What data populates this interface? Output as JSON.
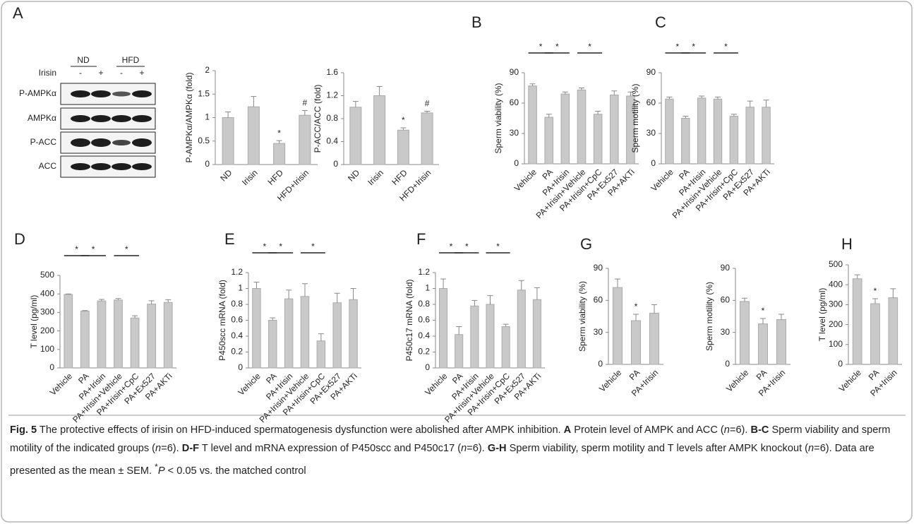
{
  "blot": {
    "panel": "A",
    "groups": [
      "ND",
      "HFD"
    ],
    "treatment": "Irisin",
    "lanes": [
      "-",
      "+",
      "-",
      "+"
    ],
    "rows": [
      "P-AMPKα",
      "AMPKα",
      "P-ACC",
      "ACC"
    ]
  },
  "chart_data": [
    {
      "type": "bar",
      "y_label": "P-AMPKα/AMPKα (fold)",
      "categories": [
        "ND",
        "Irisin",
        "HFD",
        "HFD+Irisin"
      ],
      "values": [
        1.0,
        1.23,
        0.45,
        1.05
      ],
      "errors": [
        0.12,
        0.22,
        0.06,
        0.1
      ],
      "ylim": [
        0,
        2
      ],
      "yticks": [
        0,
        0.5,
        1,
        1.5,
        2
      ],
      "annotations": [
        {
          "category": "HFD",
          "text": "*"
        },
        {
          "category": "HFD+Irisin",
          "text": "#"
        }
      ],
      "color": "#c9c9c9"
    },
    {
      "type": "bar",
      "y_label": "P-ACC/ACC (fold)",
      "categories": [
        "ND",
        "Irisin",
        "HFD",
        "HFD+Irisin"
      ],
      "values": [
        1.0,
        1.2,
        0.6,
        0.9
      ],
      "errors": [
        0.1,
        0.16,
        0.04,
        0.03
      ],
      "ylim": [
        0,
        1.6
      ],
      "yticks": [
        0,
        0.4,
        0.8,
        1.2,
        1.6
      ],
      "annotations": [
        {
          "category": "HFD",
          "text": "*"
        },
        {
          "category": "HFD+Irisin",
          "text": "#"
        }
      ],
      "color": "#c9c9c9"
    },
    {
      "type": "bar",
      "panel": "B",
      "y_label": "Sperm viability (%)",
      "categories": [
        "Vehicle",
        "PA",
        "PA+Irisin",
        "PA+Irisin+Vehicle",
        "PA+Irisin+CpC",
        "PA+Ex527",
        "PA+AKTi"
      ],
      "values": [
        77,
        46,
        69,
        73,
        49,
        68,
        67
      ],
      "errors": [
        2,
        3,
        2,
        2,
        3,
        4,
        4
      ],
      "ylim": [
        0,
        90
      ],
      "yticks": [
        0,
        30,
        60,
        90
      ],
      "significance": [
        {
          "between": [
            "Vehicle",
            "PA"
          ],
          "text": "*"
        },
        {
          "between": [
            "PA",
            "PA+Irisin"
          ],
          "text": "*"
        },
        {
          "between": [
            "PA+Irisin+Vehicle",
            "PA+Irisin+CpC"
          ],
          "text": "*"
        }
      ],
      "color": "#c9c9c9"
    },
    {
      "type": "bar",
      "panel": "C",
      "y_label": "Sperm motility (%)",
      "categories": [
        "Vehicle",
        "PA",
        "PA+Irisin",
        "PA+Irisin+Vehicle",
        "PA+Irisin+CpC",
        "PA+Ex527",
        "PA+AKTi"
      ],
      "values": [
        64,
        45,
        65,
        64,
        47,
        56,
        56
      ],
      "errors": [
        2,
        2,
        2,
        2,
        2,
        6,
        7
      ],
      "ylim": [
        0,
        90
      ],
      "yticks": [
        0,
        30,
        60,
        90
      ],
      "significance": [
        {
          "between": [
            "Vehicle",
            "PA"
          ],
          "text": "*"
        },
        {
          "between": [
            "PA",
            "PA+Irisin"
          ],
          "text": "*"
        },
        {
          "between": [
            "PA+Irisin+Vehicle",
            "PA+Irisin+CpC"
          ],
          "text": "*"
        }
      ],
      "color": "#c9c9c9"
    },
    {
      "type": "bar",
      "panel": "D",
      "y_label": "T level (pg/ml)",
      "categories": [
        "Vehicle",
        "PA",
        "PA+Irisin",
        "PA+Irisin+Vehicle",
        "PA+Irisin+CpC",
        "PA+Ex527",
        "PA+AKTi"
      ],
      "values": [
        397,
        307,
        362,
        367,
        270,
        345,
        354
      ],
      "errors": [
        3,
        3,
        8,
        8,
        12,
        18,
        15
      ],
      "ylim": [
        0,
        500
      ],
      "yticks": [
        0,
        100,
        200,
        300,
        400,
        500
      ],
      "significance": [
        {
          "between": [
            "Vehicle",
            "PA"
          ],
          "text": "*"
        },
        {
          "between": [
            "PA",
            "PA+Irisin"
          ],
          "text": "*"
        },
        {
          "between": [
            "PA+Irisin+Vehicle",
            "PA+Irisin+CpC"
          ],
          "text": "*"
        }
      ],
      "color": "#c9c9c9"
    },
    {
      "type": "bar",
      "panel": "E",
      "y_label": "P450scc mRNA (fold)",
      "categories": [
        "Vehicle",
        "PA",
        "PA+Irisin",
        "PA+Irisin+Vehicle",
        "PA+Irisin+CpC",
        "PA+Ex527",
        "PA+AKTi"
      ],
      "values": [
        1.0,
        0.6,
        0.87,
        0.9,
        0.34,
        0.82,
        0.86
      ],
      "errors": [
        0.08,
        0.03,
        0.11,
        0.16,
        0.09,
        0.12,
        0.14
      ],
      "ylim": [
        0,
        1.2
      ],
      "yticks": [
        0,
        0.2,
        0.4,
        0.6,
        0.8,
        1,
        1.2
      ],
      "significance": [
        {
          "between": [
            "Vehicle",
            "PA"
          ],
          "text": "*"
        },
        {
          "between": [
            "PA",
            "PA+Irisin"
          ],
          "text": "*"
        },
        {
          "between": [
            "PA+Irisin+Vehicle",
            "PA+Irisin+CpC"
          ],
          "text": "*"
        }
      ],
      "color": "#c9c9c9"
    },
    {
      "type": "bar",
      "panel": "F",
      "y_label": "P450c17 mRNA (fold)",
      "categories": [
        "Vehicle",
        "PA",
        "PA+Irisin",
        "PA+Irisin+Vehicle",
        "PA+Irisin+CpC",
        "PA+Ex527",
        "PA+AKTi"
      ],
      "values": [
        1.0,
        0.42,
        0.78,
        0.8,
        0.52,
        0.98,
        0.86
      ],
      "errors": [
        0.12,
        0.1,
        0.07,
        0.11,
        0.03,
        0.12,
        0.15
      ],
      "ylim": [
        0,
        1.2
      ],
      "yticks": [
        0,
        0.2,
        0.4,
        0.6,
        0.8,
        1,
        1.2
      ],
      "significance": [
        {
          "between": [
            "Vehicle",
            "PA"
          ],
          "text": "*"
        },
        {
          "between": [
            "PA",
            "PA+Irisin"
          ],
          "text": "*"
        },
        {
          "between": [
            "PA+Irisin+Vehicle",
            "PA+Irisin+CpC"
          ],
          "text": "*"
        }
      ],
      "color": "#c9c9c9"
    },
    {
      "type": "bar",
      "panel": "G",
      "y_label": "Sperm viability (%)",
      "categories": [
        "Vehicle",
        "PA",
        "PA+Irisin"
      ],
      "values": [
        72,
        41,
        48
      ],
      "errors": [
        8,
        6,
        8
      ],
      "ylim": [
        0,
        90
      ],
      "yticks": [
        0,
        30,
        60,
        90
      ],
      "annotations": [
        {
          "category": "PA",
          "text": "*"
        }
      ],
      "color": "#c9c9c9"
    },
    {
      "type": "bar",
      "y_label": "Sperm motility (%)",
      "categories": [
        "Vehicle",
        "PA",
        "PA+Irisin"
      ],
      "values": [
        59,
        38,
        42
      ],
      "errors": [
        3,
        5,
        5
      ],
      "ylim": [
        0,
        90
      ],
      "yticks": [
        0,
        30,
        60,
        90
      ],
      "annotations": [
        {
          "category": "PA",
          "text": "*"
        }
      ],
      "color": "#c9c9c9"
    },
    {
      "type": "bar",
      "panel": "H",
      "y_label": "T level (pg/ml)",
      "categories": [
        "Vehicle",
        "PA",
        "PA+Irisin"
      ],
      "values": [
        430,
        305,
        335
      ],
      "errors": [
        20,
        25,
        45
      ],
      "ylim": [
        0,
        500
      ],
      "yticks": [
        0,
        100,
        200,
        300,
        400,
        500
      ],
      "annotations": [
        {
          "category": "PA",
          "text": "*"
        }
      ],
      "color": "#c9c9c9"
    }
  ],
  "caption": [
    "Fig. 5",
    " The protective effects of irisin on HFD-induced spermatogenesis dysfunction were abolished after AMPK inhibition. ",
    "A",
    " Protein level of AMPK and ACC (",
    "n",
    "=6). ",
    "B-C",
    " Sperm viability and sperm motility of the indicated groups (",
    "n",
    "=6). ",
    "D-F",
    " T level and mRNA expression of P450scc and P450c17 (",
    "n",
    "=6). ",
    "G-H",
    " Sperm viability, sperm motility and T levels after AMPK knockout (",
    "n",
    "=6). Data are presented as the mean ± SEM. ",
    "*",
    "P",
    " < 0.05 vs. the matched control"
  ]
}
